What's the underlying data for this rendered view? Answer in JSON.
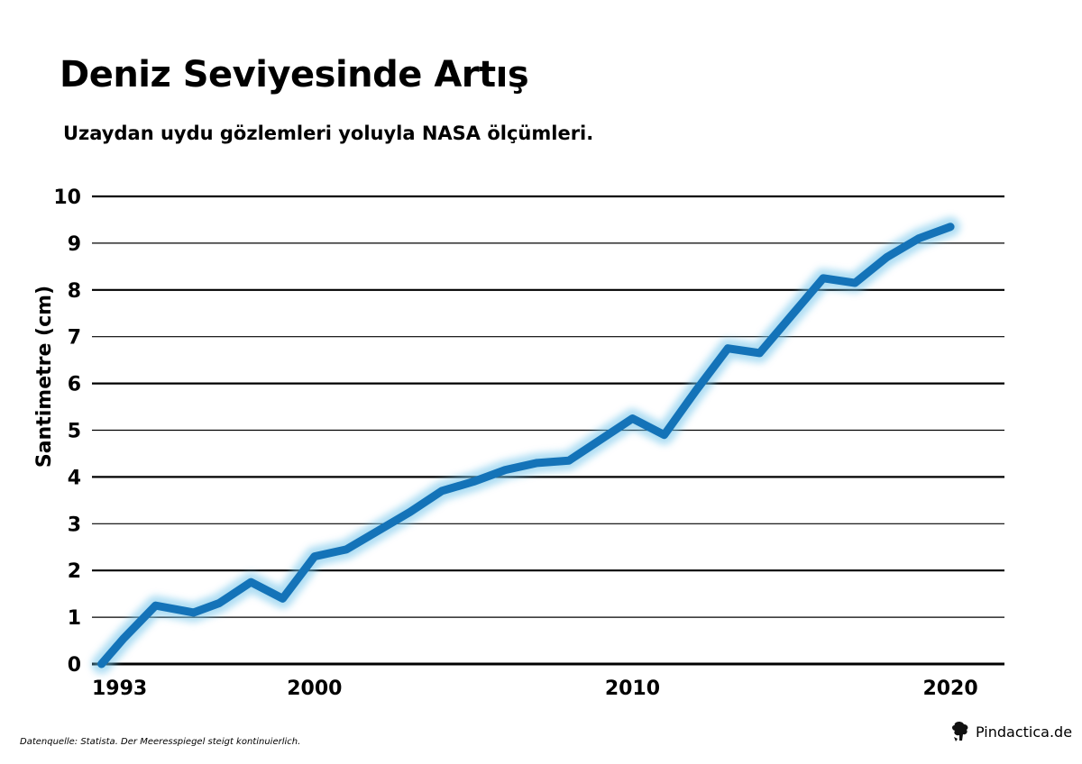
{
  "colors": {
    "line": "#1473b8",
    "glow": "#6ec3ea"
  },
  "footer": {
    "source": "Datenquelle: Statista. Der Meeresspiegel steigt kontinuierlich.",
    "brand": "Pindactica.de",
    "brand_icon": "pindactica-logo-icon"
  },
  "chart_data": {
    "type": "line",
    "title": "Deniz Seviyesinde Artış",
    "subtitle": "Uzaydan uydu gözlemleri yoluyla NASA ölçümleri.",
    "ylabel": "Santimetre (cm)",
    "xlabel": "",
    "xlim": [
      1993,
      2021.7
    ],
    "ylim": [
      0,
      10
    ],
    "grid": true,
    "x_ticks": [
      1993,
      2000,
      2010,
      2020
    ],
    "y_ticks": [
      0,
      1,
      2,
      3,
      4,
      5,
      6,
      7,
      8,
      9,
      10
    ],
    "series": [
      {
        "x": [
          1993.3,
          1994.0,
          1995.0,
          1996.2,
          1997.0,
          1998.0,
          1999.0,
          2000.0,
          2001.0,
          2002.0,
          2003.0,
          2004.0,
          2005.0,
          2006.0,
          2007.0,
          2008.0,
          2009.0,
          2010.0,
          2011.0,
          2012.0,
          2013.0,
          2014.0,
          2015.0,
          2016.0,
          2017.0,
          2018.0,
          2019.0,
          2020.0
        ],
        "values": [
          0.0,
          0.55,
          1.25,
          1.1,
          1.3,
          1.75,
          1.4,
          2.3,
          2.45,
          2.85,
          3.25,
          3.7,
          3.9,
          4.15,
          4.3,
          4.35,
          4.8,
          5.25,
          4.9,
          5.85,
          6.75,
          6.65,
          7.45,
          8.25,
          8.15,
          8.7,
          9.1,
          9.35
        ]
      }
    ]
  }
}
